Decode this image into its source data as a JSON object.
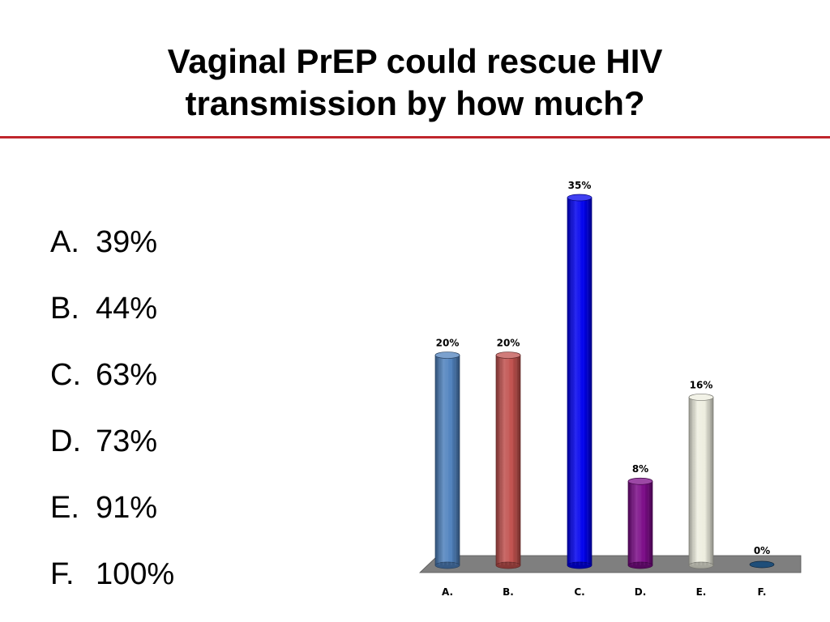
{
  "title": {
    "line1": "Vaginal PrEP could rescue HIV",
    "line2": "transmission by how much?"
  },
  "options": [
    {
      "letter": "A.",
      "text": "39%"
    },
    {
      "letter": "B.",
      "text": "44%"
    },
    {
      "letter": "C.",
      "text": "63%"
    },
    {
      "letter": "D.",
      "text": "73%"
    },
    {
      "letter": "E.",
      "text": "91%"
    },
    {
      "letter": "F.",
      "text": "100%"
    }
  ],
  "colors": {
    "accent_rule": "#c0262d",
    "floor": "#7f7f7f"
  },
  "chart_data": {
    "type": "bar",
    "title": "",
    "xlabel": "",
    "ylabel": "",
    "categories": [
      "A.",
      "B.",
      "C.",
      "D.",
      "E.",
      "F."
    ],
    "values": [
      20,
      20,
      35,
      8,
      16,
      0
    ],
    "data_labels": [
      "20%",
      "20%",
      "35%",
      "8%",
      "16%",
      "0%"
    ],
    "ylim": [
      0,
      35
    ],
    "unit": "%",
    "grid": false,
    "legend": "none",
    "bar_colors": [
      "#4f81bd",
      "#c0504d",
      "#0000ee",
      "#7b0b87",
      "#ededdf",
      "#1f4e79"
    ]
  }
}
